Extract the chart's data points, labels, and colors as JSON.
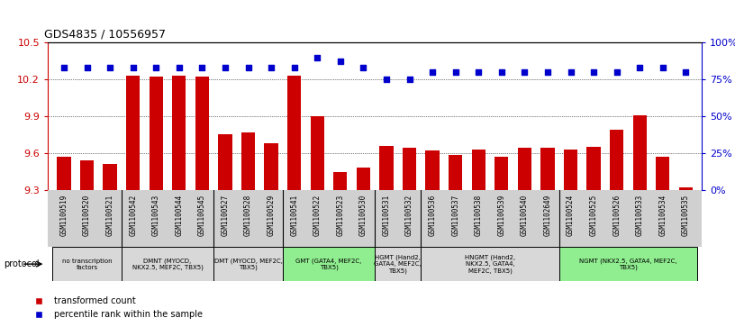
{
  "title": "GDS4835 / 10556957",
  "samples": [
    "GSM1100519",
    "GSM1100520",
    "GSM1100521",
    "GSM1100542",
    "GSM1100543",
    "GSM1100544",
    "GSM1100545",
    "GSM1100527",
    "GSM1100528",
    "GSM1100529",
    "GSM1100541",
    "GSM1100522",
    "GSM1100523",
    "GSM1100530",
    "GSM1100531",
    "GSM1100532",
    "GSM1100536",
    "GSM1100537",
    "GSM1100538",
    "GSM1100539",
    "GSM1100540",
    "GSM1102649",
    "GSM1100524",
    "GSM1100525",
    "GSM1100526",
    "GSM1100533",
    "GSM1100534",
    "GSM1100535"
  ],
  "bar_values": [
    9.57,
    9.54,
    9.51,
    10.23,
    10.22,
    10.23,
    10.22,
    9.75,
    9.77,
    9.68,
    10.23,
    9.9,
    9.44,
    9.48,
    9.66,
    9.64,
    9.62,
    9.58,
    9.63,
    9.57,
    9.64,
    9.64,
    9.63,
    9.65,
    9.79,
    9.91,
    9.57,
    9.32
  ],
  "percentile_values": [
    83,
    83,
    83,
    83,
    83,
    83,
    83,
    83,
    83,
    83,
    83,
    90,
    87,
    83,
    75,
    75,
    80,
    80,
    80,
    80,
    80,
    80,
    80,
    80,
    80,
    83,
    83,
    80
  ],
  "bar_color": "#cc0000",
  "dot_color": "#0000cc",
  "ylim_left": [
    9.3,
    10.5
  ],
  "ylim_right": [
    0,
    100
  ],
  "yticks_left": [
    9.3,
    9.6,
    9.9,
    10.2,
    10.5
  ],
  "yticks_right": [
    0,
    25,
    50,
    75,
    100
  ],
  "ytick_labels_right": [
    "0%",
    "25%",
    "50%",
    "75%",
    "100%"
  ],
  "protocol_groups": [
    {
      "label": "no transcription\nfactors",
      "start": 0,
      "end": 2,
      "color": "gray"
    },
    {
      "label": "DMNT (MYOCD,\nNKX2.5, MEF2C, TBX5)",
      "start": 3,
      "end": 6,
      "color": "gray"
    },
    {
      "label": "DMT (MYOCD, MEF2C,\nTBX5)",
      "start": 7,
      "end": 9,
      "color": "gray"
    },
    {
      "label": "GMT (GATA4, MEF2C,\nTBX5)",
      "start": 10,
      "end": 13,
      "color": "green"
    },
    {
      "label": "HGMT (Hand2,\nGATA4, MEF2C,\nTBX5)",
      "start": 14,
      "end": 15,
      "color": "gray"
    },
    {
      "label": "HNGMT (Hand2,\nNKX2.5, GATA4,\nMEF2C, TBX5)",
      "start": 16,
      "end": 21,
      "color": "gray"
    },
    {
      "label": "NGMT (NKX2.5, GATA4, MEF2C,\nTBX5)",
      "start": 22,
      "end": 27,
      "color": "green"
    }
  ],
  "legend_bar_label": "transformed count",
  "legend_dot_label": "percentile rank within the sample",
  "xlabel_protocol": "protocol",
  "xtick_bg_color": "#d0d0d0",
  "plot_bg_color": "#ffffff",
  "fig_bg_color": "#ffffff"
}
